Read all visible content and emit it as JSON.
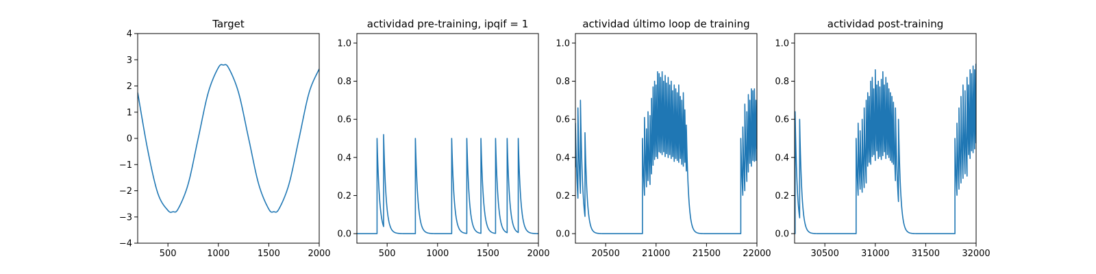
{
  "figure": {
    "background": "#ffffff",
    "line_color": "#1f77b4"
  },
  "chart_data": [
    {
      "type": "line",
      "title": "Target",
      "xlim": [
        200,
        2000
      ],
      "ylim": [
        -4,
        4
      ],
      "xticks": [
        500,
        1000,
        1500,
        2000
      ],
      "yticks": [
        -4,
        -3,
        -2,
        -1,
        0,
        1,
        2,
        3,
        4
      ],
      "ytick_labels": [
        "−4",
        "−3",
        "−2",
        "−1",
        "0",
        "1",
        "2",
        "3",
        "4"
      ],
      "series": [
        {
          "x": [
            200,
            300,
            400,
            500,
            550,
            600,
            700,
            800,
            900,
            1000,
            1050,
            1100,
            1200,
            1300,
            1400,
            1500,
            1550,
            1600,
            1700,
            1800,
            1900,
            2000
          ],
          "y": [
            1.75,
            -0.45,
            -2.1,
            -2.75,
            -2.8,
            -2.7,
            -1.75,
            0.0,
            1.75,
            2.7,
            2.8,
            2.7,
            1.75,
            0.0,
            -1.75,
            -2.7,
            -2.8,
            -2.7,
            -1.75,
            0.0,
            1.75,
            2.65
          ]
        }
      ]
    },
    {
      "type": "line",
      "title": "actividad pre-training, ipqif = 1",
      "xlim": [
        200,
        2000
      ],
      "ylim": [
        -0.05,
        1.05
      ],
      "xticks": [
        500,
        1000,
        1500,
        2000
      ],
      "yticks": [
        0.0,
        0.2,
        0.4,
        0.6,
        0.8,
        1.0
      ],
      "ytick_labels": [
        "0.0",
        "0.2",
        "0.4",
        "0.6",
        "0.8",
        "1.0"
      ],
      "spikes": [
        {
          "x": 400,
          "peak": 0.5
        },
        {
          "x": 465,
          "peak": 0.52
        },
        {
          "x": 780,
          "peak": 0.5
        },
        {
          "x": 1140,
          "peak": 0.5
        },
        {
          "x": 1290,
          "peak": 0.5
        },
        {
          "x": 1430,
          "peak": 0.5
        },
        {
          "x": 1575,
          "peak": 0.5
        },
        {
          "x": 1690,
          "peak": 0.5
        },
        {
          "x": 1800,
          "peak": 0.5
        }
      ],
      "decay": 25
    },
    {
      "type": "line",
      "title": "actividad último loop de training",
      "xlim": [
        20200,
        22000
      ],
      "ylim": [
        -0.05,
        1.05
      ],
      "xticks": [
        20500,
        21000,
        21500,
        22000
      ],
      "yticks": [
        0.0,
        0.2,
        0.4,
        0.6,
        0.8,
        1.0
      ],
      "ytick_labels": [
        "0.0",
        "0.2",
        "0.4",
        "0.6",
        "0.8",
        "1.0"
      ],
      "spikes": [
        {
          "x": 20200,
          "peak": 0.58
        },
        {
          "x": 20225,
          "peak": 0.66
        },
        {
          "x": 20250,
          "peak": 0.7
        },
        {
          "x": 20295,
          "peak": 0.53
        },
        {
          "x": 20865,
          "peak": 0.5
        },
        {
          "x": 20885,
          "peak": 0.61
        },
        {
          "x": 20905,
          "peak": 0.55
        },
        {
          "x": 20920,
          "peak": 0.64
        },
        {
          "x": 20940,
          "peak": 0.62
        },
        {
          "x": 20955,
          "peak": 0.71
        },
        {
          "x": 20970,
          "peak": 0.77
        },
        {
          "x": 20985,
          "peak": 0.8
        },
        {
          "x": 21000,
          "peak": 0.78
        },
        {
          "x": 21015,
          "peak": 0.85
        },
        {
          "x": 21030,
          "peak": 0.84
        },
        {
          "x": 21045,
          "peak": 0.82
        },
        {
          "x": 21060,
          "peak": 0.85
        },
        {
          "x": 21075,
          "peak": 0.8
        },
        {
          "x": 21090,
          "peak": 0.83
        },
        {
          "x": 21105,
          "peak": 0.79
        },
        {
          "x": 21120,
          "peak": 0.82
        },
        {
          "x": 21135,
          "peak": 0.78
        },
        {
          "x": 21150,
          "peak": 0.8
        },
        {
          "x": 21165,
          "peak": 0.75
        },
        {
          "x": 21180,
          "peak": 0.78
        },
        {
          "x": 21195,
          "peak": 0.76
        },
        {
          "x": 21210,
          "peak": 0.74
        },
        {
          "x": 21225,
          "peak": 0.78
        },
        {
          "x": 21240,
          "peak": 0.72
        },
        {
          "x": 21255,
          "peak": 0.7
        },
        {
          "x": 21270,
          "peak": 0.74
        },
        {
          "x": 21285,
          "peak": 0.65
        },
        {
          "x": 21300,
          "peak": 0.57
        },
        {
          "x": 21840,
          "peak": 0.5
        },
        {
          "x": 21860,
          "peak": 0.56
        },
        {
          "x": 21880,
          "peak": 0.68
        },
        {
          "x": 21900,
          "peak": 0.64
        },
        {
          "x": 21915,
          "peak": 0.73
        },
        {
          "x": 21930,
          "peak": 0.7
        },
        {
          "x": 21945,
          "peak": 0.76
        },
        {
          "x": 21960,
          "peak": 0.75
        },
        {
          "x": 21975,
          "peak": 0.76
        },
        {
          "x": 21990,
          "peak": 0.7
        }
      ],
      "decay": 22
    },
    {
      "type": "line",
      "title": "actividad post-training",
      "xlim": [
        30200,
        32000
      ],
      "ylim": [
        -0.05,
        1.05
      ],
      "xticks": [
        30500,
        31000,
        31500,
        32000
      ],
      "yticks": [
        0.0,
        0.2,
        0.4,
        0.6,
        0.8,
        1.0
      ],
      "ytick_labels": [
        "0.0",
        "0.2",
        "0.4",
        "0.6",
        "0.8",
        "1.0"
      ],
      "spikes": [
        {
          "x": 30205,
          "peak": 0.64
        },
        {
          "x": 30250,
          "peak": 0.6
        },
        {
          "x": 30810,
          "peak": 0.5
        },
        {
          "x": 30830,
          "peak": 0.58
        },
        {
          "x": 30850,
          "peak": 0.54
        },
        {
          "x": 30870,
          "peak": 0.6
        },
        {
          "x": 30890,
          "peak": 0.66
        },
        {
          "x": 30910,
          "peak": 0.7
        },
        {
          "x": 30925,
          "peak": 0.74
        },
        {
          "x": 30940,
          "peak": 0.72
        },
        {
          "x": 30955,
          "peak": 0.8
        },
        {
          "x": 30970,
          "peak": 0.82
        },
        {
          "x": 30985,
          "peak": 0.76
        },
        {
          "x": 31000,
          "peak": 0.86
        },
        {
          "x": 31015,
          "peak": 0.78
        },
        {
          "x": 31030,
          "peak": 0.8
        },
        {
          "x": 31045,
          "peak": 0.77
        },
        {
          "x": 31060,
          "peak": 0.81
        },
        {
          "x": 31075,
          "peak": 0.85
        },
        {
          "x": 31090,
          "peak": 0.78
        },
        {
          "x": 31105,
          "peak": 0.82
        },
        {
          "x": 31120,
          "peak": 0.79
        },
        {
          "x": 31135,
          "peak": 0.76
        },
        {
          "x": 31150,
          "peak": 0.74
        },
        {
          "x": 31165,
          "peak": 0.72
        },
        {
          "x": 31180,
          "peak": 0.69
        },
        {
          "x": 31200,
          "peak": 0.66
        },
        {
          "x": 31230,
          "peak": 0.6
        },
        {
          "x": 31790,
          "peak": 0.5
        },
        {
          "x": 31810,
          "peak": 0.58
        },
        {
          "x": 31830,
          "peak": 0.66
        },
        {
          "x": 31850,
          "peak": 0.72
        },
        {
          "x": 31870,
          "peak": 0.78
        },
        {
          "x": 31890,
          "peak": 0.75
        },
        {
          "x": 31910,
          "peak": 0.82
        },
        {
          "x": 31925,
          "peak": 0.78
        },
        {
          "x": 31940,
          "peak": 0.86
        },
        {
          "x": 31955,
          "peak": 0.84
        },
        {
          "x": 31970,
          "peak": 0.88
        },
        {
          "x": 31985,
          "peak": 0.86
        },
        {
          "x": 31998,
          "peak": 0.89
        }
      ],
      "decay": 22
    }
  ]
}
